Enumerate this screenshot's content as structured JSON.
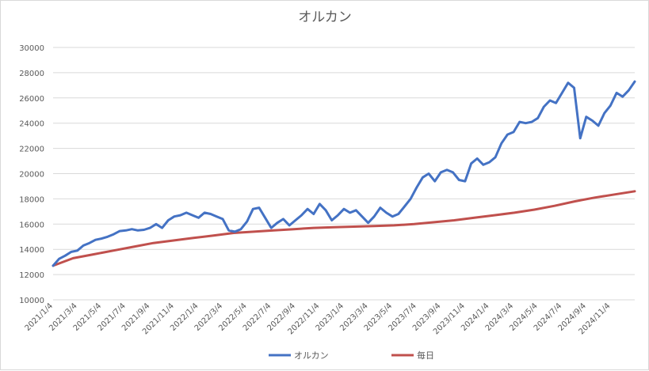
{
  "chart_data": {
    "type": "line",
    "title": "オルカン",
    "xlabel": "",
    "ylabel": "",
    "x_tick_labels": [
      "2021/1/4",
      "2021/3/4",
      "2021/5/4",
      "2021/7/4",
      "2021/9/4",
      "2021/11/4",
      "2022/1/4",
      "2022/3/4",
      "2022/5/4",
      "2022/7/4",
      "2022/9/4",
      "2022/11/4",
      "2023/1/4",
      "2023/3/4",
      "2023/5/4",
      "2023/7/4",
      "2023/9/4",
      "2023/11/4",
      "2024/1/4",
      "2024/3/4",
      "2024/5/4",
      "2024/7/4",
      "2024/9/4",
      "2024/11/4"
    ],
    "y_ticks": [
      10000,
      12000,
      14000,
      16000,
      18000,
      20000,
      22000,
      24000,
      26000,
      28000,
      30000
    ],
    "ylim": [
      10000,
      30000
    ],
    "grid": true,
    "legend_position": "bottom",
    "series": [
      {
        "name": "オルカン",
        "color": "#4472c4",
        "values": [
          12700,
          13250,
          13500,
          13800,
          13900,
          14300,
          14500,
          14750,
          14850,
          15000,
          15200,
          15450,
          15500,
          15600,
          15500,
          15550,
          15700,
          16000,
          15700,
          16300,
          16600,
          16700,
          16900,
          16700,
          16500,
          16900,
          16800,
          16600,
          16400,
          15500,
          15400,
          15600,
          16200,
          17200,
          17300,
          16500,
          15700,
          16100,
          16400,
          15900,
          16300,
          16700,
          17200,
          16800,
          17600,
          17100,
          16300,
          16700,
          17200,
          16900,
          17100,
          16600,
          16100,
          16600,
          17300,
          16900,
          16600,
          16800,
          17400,
          18000,
          18900,
          19700,
          20000,
          19400,
          20100,
          20300,
          20100,
          19500,
          19400,
          20800,
          21200,
          20700,
          20900,
          21300,
          22400,
          23100,
          23300,
          24100,
          24000,
          24100,
          24400,
          25300,
          25800,
          25600,
          26400,
          27200,
          26800,
          22800,
          24500,
          24200,
          23800,
          24800,
          25400,
          26400,
          26100,
          26600,
          27300
        ]
      },
      {
        "name": "毎日",
        "color": "#c0504d",
        "values": [
          12700,
          13300,
          13600,
          13900,
          14200,
          14500,
          14700,
          14900,
          15100,
          15300,
          15400,
          15500,
          15600,
          15700,
          15750,
          15800,
          15850,
          15900,
          16000,
          16150,
          16300,
          16500,
          16700,
          16900,
          17150,
          17450,
          17800,
          18100,
          18350,
          18600
        ]
      }
    ]
  }
}
